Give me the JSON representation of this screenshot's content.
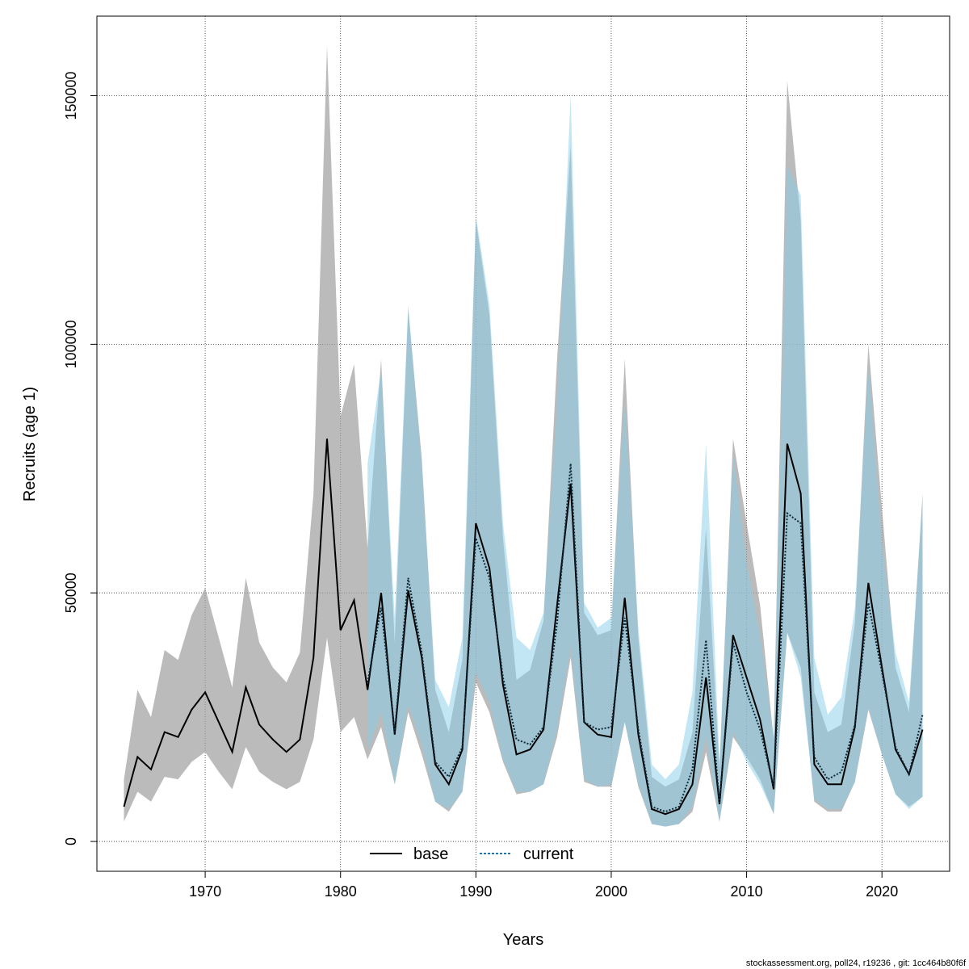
{
  "chart_data": {
    "type": "area",
    "xlabel": "Years",
    "ylabel": "Recruits (age 1)",
    "xlim": [
      1962,
      2025
    ],
    "ylim": [
      -6000,
      166000
    ],
    "x_ticks": [
      1970,
      1980,
      1990,
      2000,
      2010,
      2020
    ],
    "y_ticks": [
      0,
      50000,
      100000,
      150000
    ],
    "grid": true,
    "legend_position": "bottom-center",
    "series": [
      {
        "name": "base",
        "line_style": "solid",
        "line_color": "#000000",
        "band_color": "#bebebe",
        "x": [
          1964,
          1965,
          1966,
          1967,
          1968,
          1969,
          1970,
          1971,
          1972,
          1973,
          1974,
          1975,
          1976,
          1977,
          1978,
          1979,
          1980,
          1981,
          1982,
          1983,
          1984,
          1985,
          1986,
          1987,
          1988,
          1989,
          1990,
          1991,
          1992,
          1993,
          1994,
          1995,
          1996,
          1997,
          1998,
          1999,
          2000,
          2001,
          2002,
          2003,
          2004,
          2005,
          2006,
          2007,
          2008,
          2009,
          2010,
          2011,
          2012,
          2013,
          2014,
          2015,
          2016,
          2017,
          2018,
          2019,
          2020,
          2021,
          2022,
          2023
        ],
        "values": [
          7000,
          17000,
          14500,
          22000,
          21000,
          26500,
          30000,
          24000,
          18000,
          31000,
          23500,
          20500,
          18000,
          20500,
          37000,
          81000,
          42500,
          48500,
          30500,
          50000,
          21500,
          50500,
          37000,
          15500,
          11500,
          18500,
          64000,
          55000,
          31500,
          17500,
          18500,
          22500,
          47500,
          72000,
          24000,
          21500,
          21000,
          49000,
          21500,
          6500,
          5500,
          6500,
          11500,
          33000,
          7500,
          41500,
          33000,
          24500,
          10500,
          80000,
          70000,
          15500,
          11500,
          11500,
          23000,
          52000,
          35000,
          18500,
          13500,
          22500
        ],
        "lower": [
          4000,
          10000,
          8000,
          13000,
          12500,
          16000,
          18000,
          14000,
          10500,
          19000,
          14000,
          12000,
          10500,
          12000,
          20500,
          41000,
          22000,
          25000,
          16500,
          23000,
          11500,
          26000,
          17500,
          8000,
          6000,
          10000,
          32000,
          26000,
          16000,
          9500,
          10000,
          11500,
          21000,
          37000,
          12000,
          11000,
          11000,
          24000,
          11000,
          3500,
          3000,
          3500,
          6000,
          18000,
          4000,
          21000,
          17000,
          12500,
          5500,
          42000,
          35000,
          8000,
          6000,
          6000,
          12000,
          26500,
          17500,
          9500,
          7000,
          9000
        ],
        "upper": [
          12500,
          30500,
          25000,
          38500,
          36500,
          45500,
          51000,
          41000,
          31000,
          53000,
          40000,
          35000,
          32000,
          38000,
          70000,
          160000,
          85500,
          96000,
          59000,
          97000,
          40000,
          107000,
          77000,
          30500,
          22000,
          36500,
          125000,
          106000,
          61000,
          32500,
          34500,
          44500,
          97000,
          140000,
          46000,
          41500,
          42500,
          97000,
          41000,
          13000,
          11000,
          12500,
          22000,
          63000,
          14500,
          81000,
          64000,
          47500,
          20500,
          153000,
          125000,
          30000,
          22000,
          23500,
          44000,
          100000,
          67000,
          35000,
          26000,
          70000
        ]
      },
      {
        "name": "current",
        "line_style": "dotted",
        "line_color": "#1f77b4",
        "band_color": "#87ceeb",
        "x": [
          1982,
          1983,
          1984,
          1985,
          1986,
          1987,
          1988,
          1989,
          1990,
          1991,
          1992,
          1993,
          1994,
          1995,
          1996,
          1997,
          1998,
          1999,
          2000,
          2001,
          2002,
          2003,
          2004,
          2005,
          2006,
          2007,
          2008,
          2009,
          2010,
          2011,
          2012,
          2013,
          2014,
          2015,
          2016,
          2017,
          2018,
          2019,
          2020,
          2021,
          2022,
          2023
        ],
        "values": [
          32000,
          47000,
          22000,
          53000,
          38000,
          16000,
          13000,
          19000,
          61000,
          53000,
          33000,
          20500,
          19500,
          23000,
          44000,
          76000,
          24000,
          22500,
          23000,
          45000,
          22500,
          7000,
          6000,
          7000,
          14500,
          40500,
          7500,
          40000,
          30000,
          22500,
          11000,
          66000,
          64000,
          17000,
          12500,
          14000,
          23500,
          48000,
          34000,
          19000,
          13500,
          25500
        ],
        "lower": [
          18000,
          26000,
          11500,
          27500,
          19500,
          8000,
          6500,
          10000,
          34000,
          28000,
          16500,
          10000,
          10000,
          11500,
          22500,
          39000,
          12500,
          11000,
          11500,
          24000,
          11500,
          3500,
          3000,
          3500,
          7000,
          21000,
          4000,
          22000,
          16000,
          11500,
          5500,
          42000,
          33000,
          8500,
          6500,
          6500,
          12000,
          27000,
          17500,
          9500,
          6500,
          9000
        ],
        "upper": [
          76000,
          95000,
          45000,
          108000,
          76000,
          32500,
          27000,
          41000,
          126000,
          108000,
          64000,
          41000,
          38500,
          46000,
          88000,
          150000,
          48000,
          43000,
          45000,
          89000,
          43000,
          15500,
          12500,
          15500,
          30000,
          80000,
          16000,
          78000,
          56000,
          41500,
          21000,
          136000,
          130000,
          37000,
          25500,
          29000,
          47000,
          96000,
          60000,
          38000,
          28000,
          69000
        ]
      }
    ],
    "footer": "stockassessment.org, poll24, r19236 , git: 1cc464b80f6f"
  }
}
